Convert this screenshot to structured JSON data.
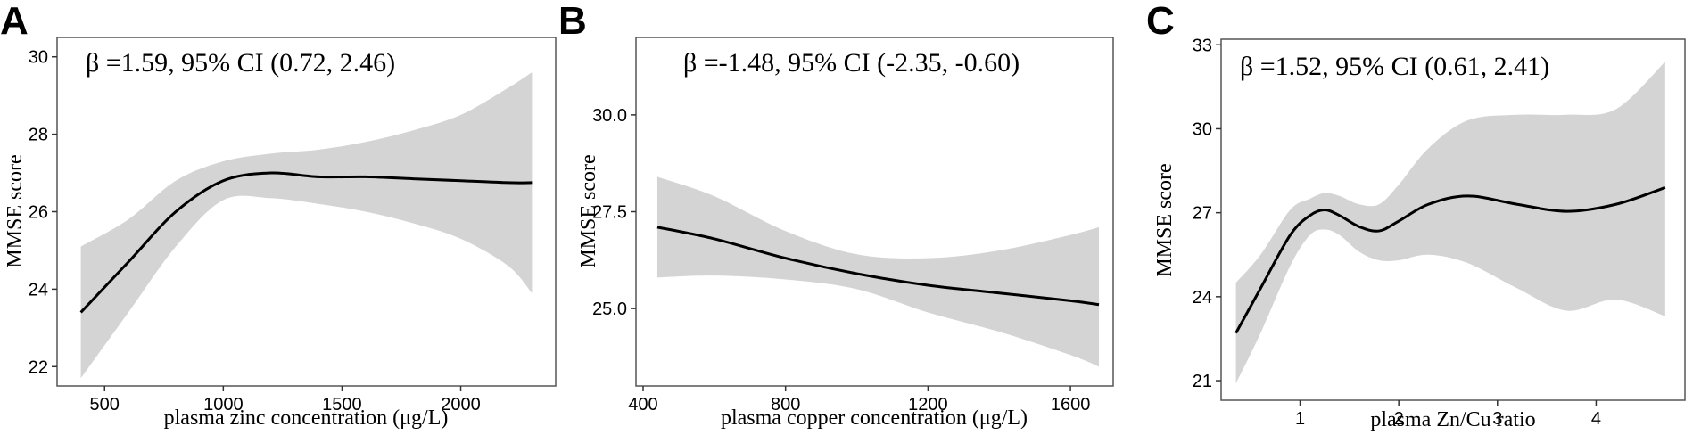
{
  "chart_data": [
    {
      "panel": "A",
      "type": "line",
      "annotation": "β =1.59, 95% CI (0.72, 2.46)",
      "xlabel": "plasma zinc concentration (μg/L)",
      "ylabel": "MMSE score",
      "xticks": [
        500,
        1000,
        1500,
        2000
      ],
      "yticks": [
        22,
        24,
        26,
        28,
        30
      ],
      "xlim": [
        300,
        2400
      ],
      "ylim": [
        21.5,
        30.5
      ],
      "grid": false,
      "series": [
        {
          "x": [
            400,
            600,
            800,
            1000,
            1200,
            1400,
            1600,
            1800,
            2000,
            2200,
            2300
          ],
          "y": [
            23.4,
            24.7,
            26.0,
            26.8,
            27.0,
            26.9,
            26.9,
            26.85,
            26.8,
            26.75,
            26.75
          ],
          "lower": [
            21.7,
            23.4,
            25.1,
            26.3,
            26.35,
            26.2,
            26.0,
            25.7,
            25.3,
            24.6,
            23.9
          ],
          "upper": [
            25.1,
            25.8,
            26.8,
            27.3,
            27.5,
            27.6,
            27.8,
            28.1,
            28.5,
            29.2,
            29.6
          ]
        }
      ]
    },
    {
      "panel": "B",
      "type": "line",
      "annotation": "β =-1.48, 95% CI (-2.35, -0.60)",
      "xlabel": "plasma copper concentration (μg/L)",
      "ylabel": "MMSE score",
      "xticks": [
        400,
        800,
        1200,
        1600
      ],
      "yticks": [
        25.0,
        27.5,
        30.0
      ],
      "ytick_labels": [
        "25.0",
        "27.5",
        "30.0"
      ],
      "xlim": [
        380,
        1720
      ],
      "ylim": [
        23.0,
        32.0
      ],
      "grid": false,
      "series": [
        {
          "x": [
            440,
            600,
            800,
            1000,
            1200,
            1400,
            1600,
            1680
          ],
          "y": [
            27.1,
            26.8,
            26.3,
            25.9,
            25.6,
            25.4,
            25.2,
            25.1
          ],
          "lower": [
            25.8,
            25.85,
            25.75,
            25.5,
            24.9,
            24.4,
            23.8,
            23.5
          ],
          "upper": [
            28.4,
            27.9,
            27.0,
            26.4,
            26.3,
            26.5,
            26.9,
            27.1
          ]
        }
      ]
    },
    {
      "panel": "C",
      "type": "line",
      "annotation": "β =1.52, 95% CI (0.61, 2.41)",
      "xlabel": "plasma Zn/Cu ratio",
      "ylabel": "MMSE score",
      "xticks": [
        1,
        2,
        3,
        4
      ],
      "yticks": [
        21,
        24,
        27,
        30,
        33
      ],
      "xlim": [
        0.2,
        4.9
      ],
      "ylim": [
        20.3,
        33.2
      ],
      "grid": false,
      "series": [
        {
          "x": [
            0.35,
            0.6,
            0.9,
            1.1,
            1.25,
            1.4,
            1.6,
            1.8,
            2.0,
            2.3,
            2.7,
            3.2,
            3.7,
            4.2,
            4.7
          ],
          "y": [
            22.7,
            24.3,
            26.2,
            26.9,
            27.1,
            26.9,
            26.5,
            26.35,
            26.7,
            27.3,
            27.6,
            27.3,
            27.05,
            27.3,
            27.9
          ],
          "lower": [
            20.9,
            22.7,
            25.1,
            26.2,
            26.4,
            26.2,
            25.6,
            25.3,
            25.3,
            25.5,
            25.2,
            24.3,
            23.5,
            23.9,
            23.3
          ],
          "upper": [
            24.5,
            25.5,
            27.1,
            27.5,
            27.7,
            27.6,
            27.3,
            27.3,
            28.0,
            29.3,
            30.3,
            30.5,
            30.5,
            30.7,
            32.4
          ]
        }
      ]
    }
  ]
}
